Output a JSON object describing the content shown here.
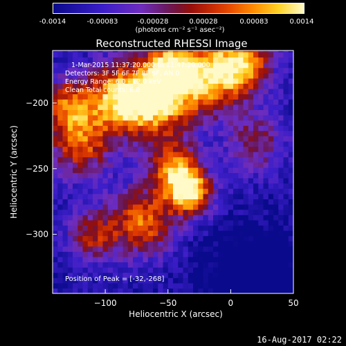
{
  "colorbar": {
    "ticks": [
      "-0.0014",
      "-0.00083",
      "-0.00028",
      "0.00028",
      "0.00083",
      "0.0014"
    ],
    "unit_label": "(photons cm⁻² s⁻¹ asec⁻²)"
  },
  "chart_data": {
    "type": "heatmap",
    "title": "Reconstructed RHESSI Image",
    "xlabel": "Heliocentric X (arcsec)",
    "ylabel": "Heliocentric Y (arcsec)",
    "xlim": [
      -142,
      50
    ],
    "ylim": [
      -345,
      -160
    ],
    "xticks": [
      -100,
      -50,
      0,
      50
    ],
    "yticks": [
      -200,
      -250,
      -300
    ],
    "xtick_labels": [
      "−100",
      "−50",
      "0",
      "50"
    ],
    "ytick_labels": [
      "−200",
      "−250",
      "−300"
    ],
    "colormap": "red-temperature",
    "value_range": [
      -0.0014,
      0.0014
    ],
    "peak": [
      -32,
      -268
    ],
    "annotations": {
      "time": "1-Mar-2015 11:37:20.000 to 11:47:20.000",
      "detectors": "Detectors: 3F 5F 6F 7F 8F 9F, AN 0",
      "energy": "Energy Range: 6.0 - 12.0 keV",
      "clean": "Clean     Total counts: 6.8",
      "peak_text": "Position of Peak = [-32,-268]"
    }
  },
  "footer": "16-Aug-2017 02:22"
}
